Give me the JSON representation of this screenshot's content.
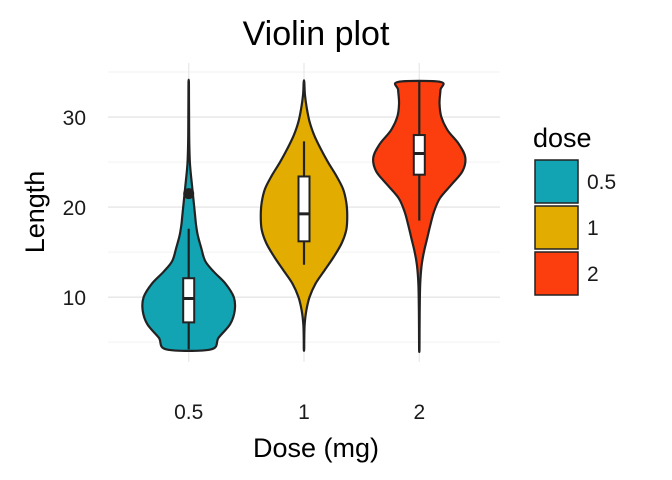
{
  "chart_data": {
    "type": "violin",
    "title": "Violin plot",
    "xlabel": "Dose (mg)",
    "ylabel": "Length",
    "categories": [
      "0.5",
      "1",
      "2"
    ],
    "ylim": [
      2.8,
      36.0
    ],
    "yticks": [
      10,
      20,
      30
    ],
    "grid": true,
    "legend": {
      "title": "dose",
      "position": "right",
      "items": [
        {
          "label": "0.5",
          "color": "#13A4B4"
        },
        {
          "label": "1",
          "color": "#E2AC00"
        },
        {
          "label": "2",
          "color": "#FC3E0E"
        }
      ]
    },
    "series": [
      {
        "category": "0.5",
        "color": "#13A4B4",
        "density": {
          "y": [
            4.2,
            5.5,
            7.0,
            8.5,
            10.0,
            11.5,
            12.8,
            14.0,
            15.5,
            16.8,
            18.0,
            19.0,
            20.0,
            21.0,
            22.0,
            23.0,
            24.0,
            25.0,
            26.5,
            28.0,
            30.0,
            32.0,
            33.9
          ],
          "w": [
            0.48,
            0.65,
            0.9,
            1.0,
            0.98,
            0.8,
            0.55,
            0.36,
            0.27,
            0.2,
            0.16,
            0.14,
            0.12,
            0.1,
            0.08,
            0.06,
            0.04,
            0.025,
            0.015,
            0.01,
            0.008,
            0.006,
            0.004
          ]
        },
        "box": {
          "q1": 7.2,
          "median": 9.85,
          "q3": 12.1,
          "whisker_low": 4.2,
          "whisker_high": 17.6
        },
        "outliers": [
          21.5
        ]
      },
      {
        "category": "1",
        "color": "#E2AC00",
        "density": {
          "y": [
            4.2,
            5.5,
            7.0,
            8.5,
            10.0,
            11.5,
            13.0,
            14.5,
            16.0,
            17.5,
            19.0,
            20.5,
            22.0,
            23.5,
            25.0,
            26.5,
            28.0,
            29.5,
            31.0,
            32.5,
            33.9
          ],
          "w": [
            0.004,
            0.006,
            0.015,
            0.05,
            0.12,
            0.25,
            0.45,
            0.65,
            0.82,
            0.92,
            0.94,
            0.92,
            0.85,
            0.7,
            0.52,
            0.36,
            0.22,
            0.12,
            0.06,
            0.02,
            0.006
          ]
        },
        "box": {
          "q1": 16.2,
          "median": 19.25,
          "q3": 23.4,
          "whisker_low": 13.6,
          "whisker_high": 27.3
        },
        "outliers": []
      },
      {
        "category": "2",
        "color": "#FC3E0E",
        "density": {
          "y": [
            4.2,
            6.5,
            9.0,
            11.5,
            13.5,
            15.0,
            16.5,
            18.0,
            19.5,
            21.0,
            22.5,
            24.0,
            25.5,
            27.0,
            28.5,
            30.0,
            31.5,
            33.0,
            33.9
          ],
          "w": [
            0.004,
            0.006,
            0.01,
            0.02,
            0.05,
            0.1,
            0.17,
            0.24,
            0.32,
            0.45,
            0.7,
            0.94,
            1.0,
            0.86,
            0.62,
            0.48,
            0.44,
            0.46,
            0.46
          ]
        },
        "box": {
          "q1": 23.6,
          "median": 25.95,
          "q3": 28.0,
          "whisker_low": 18.5,
          "whisker_high": 33.9
        },
        "outliers": []
      }
    ]
  }
}
